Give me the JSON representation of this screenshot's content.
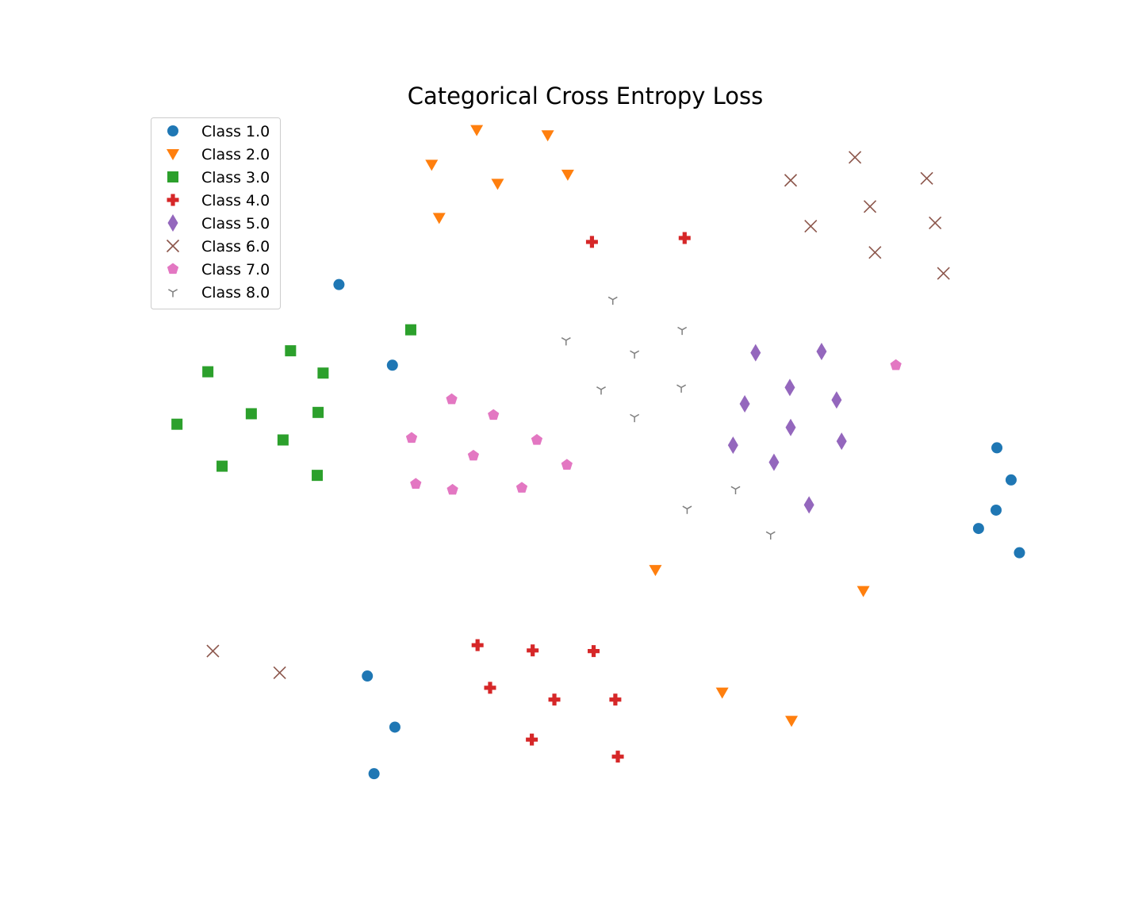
{
  "chart_data": {
    "type": "scatter",
    "title": "Categorical Cross Entropy Loss",
    "xlabel": "",
    "ylabel": "",
    "axes_visible": false,
    "grid": false,
    "legend_position": "top-left",
    "xlim": [
      -0.03,
      1.03
    ],
    "ylim": [
      -0.03,
      1.03
    ],
    "series": [
      {
        "name": "Class 1.0",
        "marker": "circle",
        "color": "#1f77b4",
        "points": [
          [
            0.205,
            0.763
          ],
          [
            0.269,
            0.64
          ],
          [
            0.239,
            0.166
          ],
          [
            0.272,
            0.088
          ],
          [
            0.247,
            0.017
          ],
          [
            0.993,
            0.514
          ],
          [
            0.971,
            0.391
          ],
          [
            1.01,
            0.465
          ],
          [
            0.992,
            0.419
          ],
          [
            1.02,
            0.354
          ]
        ]
      },
      {
        "name": "Class 2.0",
        "marker": "triangle_down",
        "color": "#ff7f0e",
        "points": [
          [
            0.37,
            0.999
          ],
          [
            0.455,
            0.991
          ],
          [
            0.316,
            0.946
          ],
          [
            0.395,
            0.917
          ],
          [
            0.479,
            0.931
          ],
          [
            0.325,
            0.865
          ],
          [
            0.584,
            0.328
          ],
          [
            0.833,
            0.296
          ],
          [
            0.664,
            0.141
          ],
          [
            0.747,
            0.098
          ]
        ]
      },
      {
        "name": "Class 3.0",
        "marker": "square",
        "color": "#2ca02c",
        "points": [
          [
            0.291,
            0.694
          ],
          [
            0.147,
            0.662
          ],
          [
            0.048,
            0.63
          ],
          [
            0.186,
            0.628
          ],
          [
            0.011,
            0.55
          ],
          [
            0.1,
            0.566
          ],
          [
            0.18,
            0.568
          ],
          [
            0.138,
            0.526
          ],
          [
            0.065,
            0.486
          ],
          [
            0.179,
            0.472
          ]
        ]
      },
      {
        "name": "Class 4.0",
        "marker": "plus_filled",
        "color": "#d62728",
        "points": [
          [
            0.508,
            0.828
          ],
          [
            0.619,
            0.834
          ],
          [
            0.371,
            0.213
          ],
          [
            0.437,
            0.205
          ],
          [
            0.51,
            0.204
          ],
          [
            0.386,
            0.148
          ],
          [
            0.463,
            0.13
          ],
          [
            0.536,
            0.13
          ],
          [
            0.436,
            0.069
          ],
          [
            0.539,
            0.043
          ]
        ]
      },
      {
        "name": "Class 5.0",
        "marker": "thin_diamond",
        "color": "#9467bd",
        "points": [
          [
            0.704,
            0.659
          ],
          [
            0.783,
            0.661
          ],
          [
            0.745,
            0.606
          ],
          [
            0.691,
            0.581
          ],
          [
            0.801,
            0.587
          ],
          [
            0.746,
            0.545
          ],
          [
            0.807,
            0.524
          ],
          [
            0.677,
            0.518
          ],
          [
            0.726,
            0.492
          ],
          [
            0.768,
            0.427
          ]
        ]
      },
      {
        "name": "Class 6.0",
        "marker": "x",
        "color": "#8c564b",
        "points": [
          [
            0.823,
            0.957
          ],
          [
            0.746,
            0.922
          ],
          [
            0.909,
            0.925
          ],
          [
            0.841,
            0.882
          ],
          [
            0.77,
            0.852
          ],
          [
            0.919,
            0.857
          ],
          [
            0.847,
            0.812
          ],
          [
            0.929,
            0.78
          ],
          [
            0.054,
            0.204
          ],
          [
            0.134,
            0.171
          ]
        ]
      },
      {
        "name": "Class 7.0",
        "marker": "pentagon",
        "color": "#e377c2",
        "points": [
          [
            0.34,
            0.588
          ],
          [
            0.39,
            0.564
          ],
          [
            0.292,
            0.529
          ],
          [
            0.442,
            0.526
          ],
          [
            0.366,
            0.502
          ],
          [
            0.478,
            0.488
          ],
          [
            0.297,
            0.459
          ],
          [
            0.341,
            0.45
          ],
          [
            0.424,
            0.453
          ],
          [
            0.872,
            0.64
          ]
        ]
      },
      {
        "name": "Class 8.0",
        "marker": "tri_down",
        "color": "#7f7f7f",
        "points": [
          [
            0.533,
            0.74
          ],
          [
            0.477,
            0.678
          ],
          [
            0.559,
            0.658
          ],
          [
            0.616,
            0.694
          ],
          [
            0.519,
            0.603
          ],
          [
            0.615,
            0.606
          ],
          [
            0.559,
            0.561
          ],
          [
            0.68,
            0.451
          ],
          [
            0.622,
            0.421
          ],
          [
            0.722,
            0.382
          ]
        ]
      }
    ]
  }
}
